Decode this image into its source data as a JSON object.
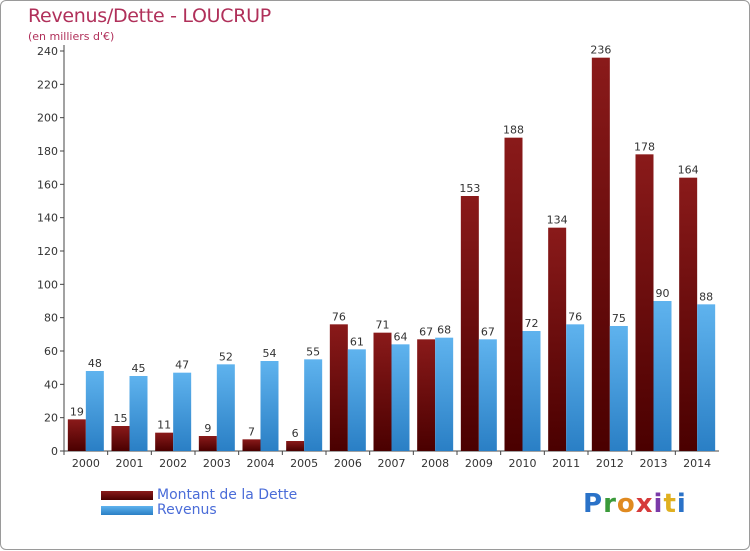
{
  "title": "Revenus/Dette - LOUCRUP",
  "subtitle": "(en milliers d'€)",
  "logo": {
    "text": "Proxiti"
  },
  "colors": {
    "dette_top": "#8a1a1a",
    "dette_bottom": "#4a0000",
    "revenus_top": "#5fb3ee",
    "revenus_bottom": "#2a7fc5",
    "title": "#b0305a",
    "legend_text": "#4a6cd8",
    "axis_text": "#333333"
  },
  "chart_data": {
    "type": "bar",
    "categories": [
      "2000",
      "2001",
      "2002",
      "2003",
      "2004",
      "2005",
      "2006",
      "2007",
      "2008",
      "2009",
      "2010",
      "2011",
      "2012",
      "2013",
      "2014"
    ],
    "series": [
      {
        "name": "Montant de la Dette",
        "values": [
          19,
          15,
          11,
          9,
          7,
          6,
          76,
          71,
          67,
          153,
          188,
          134,
          236,
          178,
          164
        ]
      },
      {
        "name": "Revenus",
        "values": [
          48,
          45,
          47,
          52,
          54,
          55,
          61,
          64,
          68,
          67,
          72,
          76,
          75,
          90,
          88
        ]
      }
    ],
    "title": "Revenus/Dette - LOUCRUP",
    "ylabel": "(en milliers d'€)",
    "ylim": [
      0,
      240
    ],
    "yticks": [
      0,
      20,
      40,
      60,
      80,
      100,
      120,
      140,
      160,
      180,
      200,
      220,
      240
    ],
    "grid": false,
    "legend": "bottom-left"
  }
}
